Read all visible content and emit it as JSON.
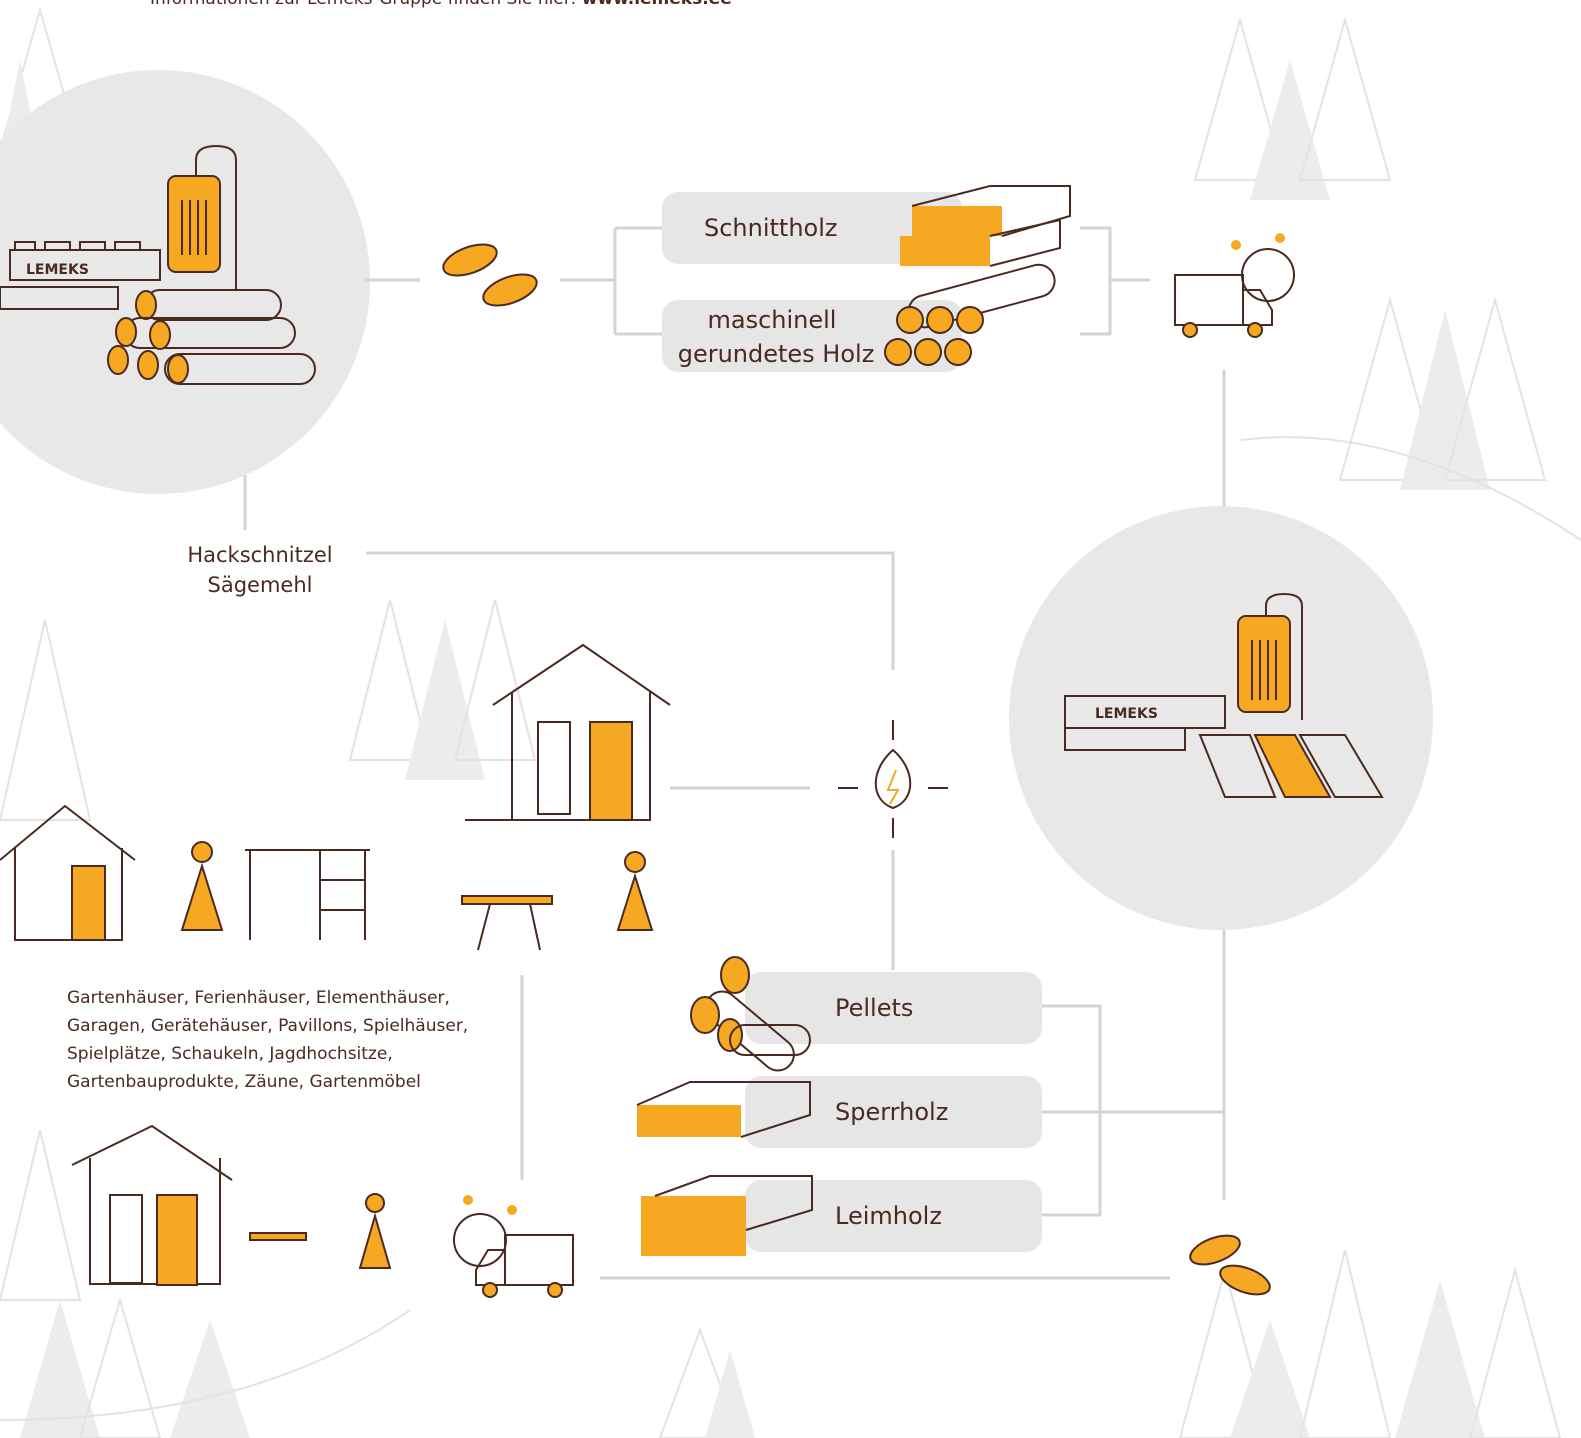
{
  "intro": {
    "text": "Informationen zur Lemeks-Gruppe finden Sie hier: ",
    "link": "www.lemeks.ee"
  },
  "sawmill": {
    "logo": "LEMEKS"
  },
  "outputs": [
    {
      "label": [
        "Schnittholz"
      ]
    },
    {
      "label": [
        "maschinell",
        "gerundetes Holz"
      ]
    }
  ],
  "byproducts": [
    "Hackschnitzel",
    "Sägemehl"
  ],
  "plant": {
    "logo": "LEMEKS"
  },
  "products": [
    "Pellets",
    "Sperrholz",
    "Leimholz"
  ],
  "garden_products": [
    "Gartenhäuser, Ferienhäuser, Elementhäuser,",
    "Garagen, Gerätehäuser, Pavillons, Spielhäuser,",
    "Spielplätze, Schaukeln, Jagdhochsitze,",
    "Gartenbauprodukte, Zäune, Gartenmöbel"
  ]
}
